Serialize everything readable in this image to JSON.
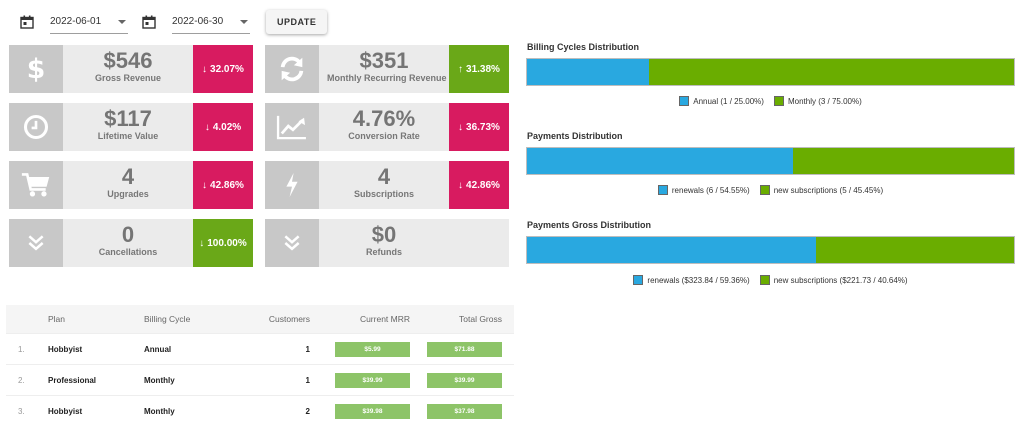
{
  "filters": {
    "start_date": "2022-06-01",
    "end_date": "2022-06-30",
    "update_label": "UPDATE"
  },
  "kpis": [
    {
      "value": "$546",
      "label": "Gross Revenue",
      "change": "32.07%",
      "direction": "down",
      "icon": "dollar-icon"
    },
    {
      "value": "$351",
      "label": "Monthly Recurring Revenue",
      "change": "31.38%",
      "direction": "up",
      "icon": "refresh-icon"
    },
    {
      "value": "$117",
      "label": "Lifetime Value",
      "change": "4.02%",
      "direction": "down",
      "icon": "clock-icon"
    },
    {
      "value": "4.76%",
      "label": "Conversion Rate",
      "change": "36.73%",
      "direction": "down",
      "icon": "trend-line-icon"
    },
    {
      "value": "4",
      "label": "Upgrades",
      "change": "42.86%",
      "direction": "down",
      "icon": "cart-icon"
    },
    {
      "value": "4",
      "label": "Subscriptions",
      "change": "42.86%",
      "direction": "down",
      "icon": "bolt-icon"
    },
    {
      "value": "0",
      "label": "Cancellations",
      "change": "100.00%",
      "direction": "down-good",
      "icon": "double-chevron-down-icon"
    },
    {
      "value": "$0",
      "label": "Refunds",
      "change": "",
      "direction": "none",
      "icon": "double-chevron-down-icon"
    }
  ],
  "distributions": [
    {
      "title": "Billing Cycles Distribution",
      "segments": [
        {
          "label": "Annual (1 / 25.00%)",
          "fraction": 0.25,
          "color": "#29a8e0"
        },
        {
          "label": "Monthly (3 / 75.00%)",
          "fraction": 0.75,
          "color": "#6aad00"
        }
      ]
    },
    {
      "title": "Payments Distribution",
      "segments": [
        {
          "label": "renewals (6 / 54.55%)",
          "fraction": 0.5455,
          "color": "#29a8e0"
        },
        {
          "label": "new subscriptions (5 / 45.45%)",
          "fraction": 0.4545,
          "color": "#6aad00"
        }
      ]
    },
    {
      "title": "Payments Gross Distribution",
      "segments": [
        {
          "label": "renewals ($323.84 / 59.36%)",
          "fraction": 0.5936,
          "color": "#29a8e0"
        },
        {
          "label": "new subscriptions ($221.73 / 40.64%)",
          "fraction": 0.4064,
          "color": "#6aad00"
        }
      ]
    }
  ],
  "table": {
    "headers": [
      "Plan",
      "Billing Cycle",
      "Customers",
      "Current MRR",
      "Total Gross"
    ],
    "rows": [
      {
        "index": "1.",
        "plan": "Hobbyist",
        "cycle": "Annual",
        "customers": "1",
        "mrr": "$5.99",
        "gross": "$71.88"
      },
      {
        "index": "2.",
        "plan": "Professional",
        "cycle": "Monthly",
        "customers": "1",
        "mrr": "$39.99",
        "gross": "$39.99"
      },
      {
        "index": "3.",
        "plan": "Hobbyist",
        "cycle": "Monthly",
        "customers": "2",
        "mrr": "$39.98",
        "gross": "$37.98"
      }
    ]
  }
}
